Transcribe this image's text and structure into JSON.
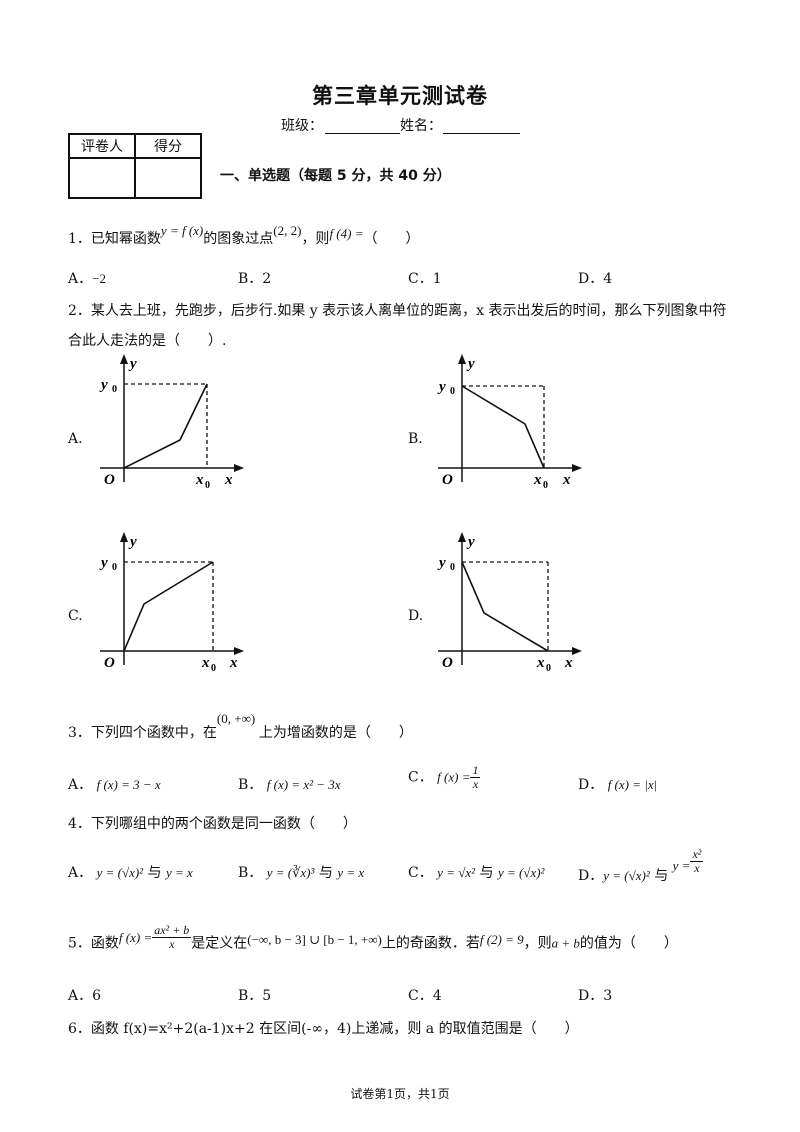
{
  "title": "第三章单元测试卷",
  "info": {
    "class_label": "班级：",
    "name_label": "姓名："
  },
  "score_table": {
    "col1": "评卷人",
    "col2": "得分"
  },
  "section": "一、单选题（每题 5 分，共 40 分）",
  "q1": {
    "text_a": "1．已知幂函数",
    "math_a": "y = f (x)",
    "text_b": "的图象过点",
    "math_b": "(2, 2)",
    "text_c": "，则",
    "math_c": "f (4) =",
    "paren": "（　　）",
    "options": [
      "A．",
      "B．",
      "C．",
      "D．"
    ],
    "values": [
      "−2",
      "2",
      "1",
      "4"
    ]
  },
  "q2": {
    "line1": "2．某人去上班，先跑步，后步行.如果 y 表示该人离单位的距离，x 表示出发后的时间，那么下列图象中符",
    "line2": "合此人走法的是（　　）.",
    "labels": [
      "A.",
      "B.",
      "C.",
      "D."
    ],
    "axis": {
      "y": "y",
      "y0": "y",
      "y0_sub": "0",
      "x": "x",
      "x0": "x",
      "x0_sub": "0",
      "origin": "O"
    }
  },
  "q3": {
    "text_a": "3．下列四个函数中，在",
    "interval": "(0, +∞)",
    "text_b": "上为增函数的是（　　）",
    "options": [
      "A．",
      "B．",
      "C．",
      "D．"
    ],
    "f_a": "f (x) = 3 − x",
    "f_b": "f (x) = x² − 3x",
    "f_c_left": "f (x) =",
    "f_c_num": "1",
    "f_c_den": "x",
    "f_d": "f (x) = |x|"
  },
  "q4": {
    "text": "4．下列哪组中的两个函数是同一函数（　　）",
    "options": [
      "A．",
      "B．",
      "C．",
      "D．"
    ],
    "yu": "与",
    "a1": "y = (√x)²",
    "a2": "y = x",
    "b1": "y = (∛x)³",
    "b2": "y = x",
    "c1": "y = √x²",
    "c2": "y = (√x)²",
    "d1": "y = (√x)²",
    "d2_left": "y =",
    "d2_num": "x²",
    "d2_den": "x"
  },
  "q5": {
    "text_a": "5．函数",
    "f_left": "f (x) =",
    "f_num": "ax² + b",
    "f_den": "x",
    "text_b": "是定义在",
    "domain": "(−∞, b − 3] ∪ [b − 1, +∞)",
    "text_c": "上的奇函数．若",
    "cond": "f (2) = 9",
    "text_d": "，则",
    "ab": "a + b",
    "text_e": "的值为（　　）",
    "options": [
      "A．",
      "B．",
      "C．",
      "D．"
    ],
    "values": [
      "6",
      "5",
      "4",
      "3"
    ]
  },
  "q6": {
    "text": "6．函数 f(x)=x²+2(a-1)x+2 在区间(-∞，4)上递减，则 a 的取值范围是（　　）"
  },
  "footer": "试卷第1页，共1页"
}
